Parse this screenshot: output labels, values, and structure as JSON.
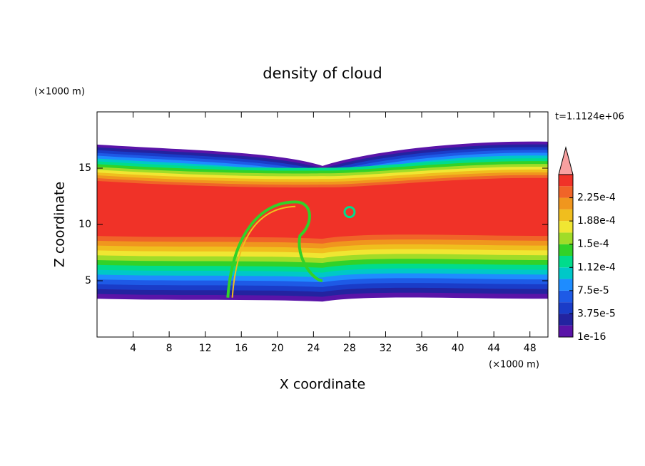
{
  "chart_data": {
    "type": "contour",
    "title": "density of cloud",
    "x_label": "X coordinate",
    "y_label": "Z coordinate",
    "x_unit": "(×1000 m)",
    "y_unit": "(×1000 m)",
    "annotation": "t=1.1124e+06",
    "xlim": [
      0,
      50
    ],
    "ylim": [
      0,
      20
    ],
    "xticks": [
      4,
      8,
      12,
      16,
      20,
      24,
      28,
      32,
      36,
      40,
      44,
      48
    ],
    "yticks": [
      5,
      10,
      15
    ],
    "colorbar_ticks": [
      {
        "value": 1e-16,
        "label": "1e-16"
      },
      {
        "value": 3.75e-05,
        "label": "3.75e-5"
      },
      {
        "value": 7.5e-05,
        "label": "7.5e-5"
      },
      {
        "value": 0.000112,
        "label": "1.12e-4"
      },
      {
        "value": 0.00015,
        "label": "1.5e-4"
      },
      {
        "value": 0.000188,
        "label": "1.88e-4"
      },
      {
        "value": 0.000225,
        "label": "2.25e-4"
      }
    ],
    "colors": [
      "#5a14a8",
      "#2323a0",
      "#1a3cc8",
      "#1e5ae6",
      "#1e8cff",
      "#00c8c8",
      "#00dc8c",
      "#32d228",
      "#a0dc28",
      "#f0e632",
      "#f0be1e",
      "#f0961e",
      "#f06428",
      "#f03228",
      "#f8a0a0"
    ]
  }
}
